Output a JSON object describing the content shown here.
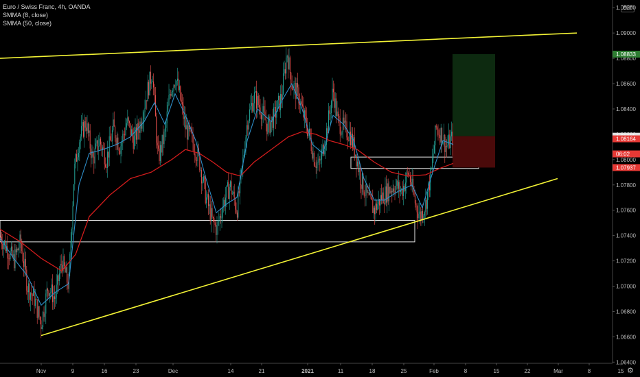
{
  "legend": {
    "symbol_line": "Euro / Swiss Franc, 4h, OANDA",
    "sma8": "SMMA (8, close)",
    "sma50": "SMMA (50, close)"
  },
  "axis": {
    "currency": "CHF"
  },
  "colors": {
    "trendline": "#f2f235",
    "sma_fast": "#2e8ec9",
    "sma_slow": "#d11c1c",
    "candle_up": "#26a69a",
    "candle_down": "#ef5350",
    "profit_zone": "#0d2a10",
    "loss_zone": "#4a0a0a",
    "tag_green": "#2e7d32",
    "tag_red": "#e53935",
    "tag_white": "#e0e0e0"
  },
  "chart_data": {
    "type": "candlestick",
    "y_range": [
      1.0638,
      1.0925
    ],
    "y_ticks": [
      "1.09200",
      "1.09000",
      "1.08800",
      "1.08600",
      "1.08400",
      "1.08200",
      "1.08000",
      "1.07800",
      "1.07600",
      "1.07400",
      "1.07200",
      "1.07000",
      "1.06800",
      "1.06600",
      "1.06400"
    ],
    "x_ticks": [
      {
        "label": "Nov",
        "t": 60
      },
      {
        "label": "9",
        "t": 106
      },
      {
        "label": "16",
        "t": 152
      },
      {
        "label": "23",
        "t": 198
      },
      {
        "label": "Dec",
        "t": 252
      },
      {
        "label": "14",
        "t": 336
      },
      {
        "label": "21",
        "t": 381
      },
      {
        "label": "2021",
        "t": 448
      },
      {
        "label": "11",
        "t": 496
      },
      {
        "label": "18",
        "t": 542
      },
      {
        "label": "25",
        "t": 588
      },
      {
        "label": "Feb",
        "t": 632
      },
      {
        "label": "8",
        "t": 678
      },
      {
        "label": "15",
        "t": 723
      },
      {
        "label": "22",
        "t": 768
      },
      {
        "label": "Mar",
        "t": 813
      },
      {
        "label": "8",
        "t": 858
      },
      {
        "label": "15",
        "t": 904
      }
    ],
    "price_path": [
      [
        0,
        1.074
      ],
      [
        10,
        1.073
      ],
      [
        20,
        1.072
      ],
      [
        30,
        1.0735
      ],
      [
        40,
        1.07
      ],
      [
        50,
        1.069
      ],
      [
        60,
        1.067
      ],
      [
        70,
        1.07
      ],
      [
        80,
        1.069
      ],
      [
        90,
        1.072
      ],
      [
        100,
        1.07
      ],
      [
        108,
        1.079
      ],
      [
        115,
        1.0815
      ],
      [
        125,
        1.083
      ],
      [
        135,
        1.08
      ],
      [
        145,
        1.0815
      ],
      [
        155,
        1.08
      ],
      [
        165,
        1.0825
      ],
      [
        175,
        1.081
      ],
      [
        185,
        1.083
      ],
      [
        195,
        1.0815
      ],
      [
        205,
        1.083
      ],
      [
        215,
        1.0855
      ],
      [
        222,
        1.087
      ],
      [
        230,
        1.08
      ],
      [
        240,
        1.082
      ],
      [
        248,
        1.0855
      ],
      [
        256,
        1.0865
      ],
      [
        262,
        1.085
      ],
      [
        270,
        1.0825
      ],
      [
        280,
        1.0815
      ],
      [
        290,
        1.08
      ],
      [
        300,
        1.077
      ],
      [
        310,
        1.075
      ],
      [
        316,
        1.0745
      ],
      [
        325,
        1.0765
      ],
      [
        335,
        1.078
      ],
      [
        345,
        1.076
      ],
      [
        352,
        1.079
      ],
      [
        360,
        1.083
      ],
      [
        370,
        1.085
      ],
      [
        380,
        1.084
      ],
      [
        390,
        1.0825
      ],
      [
        400,
        1.0835
      ],
      [
        410,
        1.085
      ],
      [
        418,
        1.0885
      ],
      [
        425,
        1.086
      ],
      [
        435,
        1.085
      ],
      [
        442,
        1.0835
      ],
      [
        450,
        1.082
      ],
      [
        458,
        1.08
      ],
      [
        465,
        1.0795
      ],
      [
        475,
        1.082
      ],
      [
        485,
        1.0855
      ],
      [
        492,
        1.083
      ],
      [
        500,
        1.0825
      ],
      [
        510,
        1.082
      ],
      [
        518,
        1.0805
      ],
      [
        525,
        1.0785
      ],
      [
        535,
        1.077
      ],
      [
        545,
        1.076
      ],
      [
        555,
        1.077
      ],
      [
        565,
        1.0775
      ],
      [
        575,
        1.078
      ],
      [
        585,
        1.0775
      ],
      [
        595,
        1.079
      ],
      [
        605,
        1.0765
      ],
      [
        612,
        1.0755
      ],
      [
        620,
        1.0765
      ],
      [
        628,
        1.079
      ],
      [
        635,
        1.0825
      ],
      [
        643,
        1.082
      ],
      [
        650,
        1.081
      ],
      [
        656,
        1.0815
      ],
      [
        660,
        1.0818
      ]
    ],
    "sma_fast_path": [
      [
        0,
        1.0738
      ],
      [
        20,
        1.0722
      ],
      [
        40,
        1.0708
      ],
      [
        60,
        1.0685
      ],
      [
        80,
        1.0695
      ],
      [
        100,
        1.0702
      ],
      [
        115,
        1.078
      ],
      [
        130,
        1.0805
      ],
      [
        150,
        1.0808
      ],
      [
        170,
        1.0812
      ],
      [
        190,
        1.0818
      ],
      [
        210,
        1.083
      ],
      [
        225,
        1.0845
      ],
      [
        240,
        1.0828
      ],
      [
        255,
        1.0852
      ],
      [
        270,
        1.0835
      ],
      [
        285,
        1.0815
      ],
      [
        300,
        1.0785
      ],
      [
        315,
        1.0758
      ],
      [
        330,
        1.0765
      ],
      [
        345,
        1.077
      ],
      [
        360,
        1.0815
      ],
      [
        375,
        1.084
      ],
      [
        395,
        1.083
      ],
      [
        412,
        1.0848
      ],
      [
        425,
        1.086
      ],
      [
        440,
        1.084
      ],
      [
        455,
        1.0812
      ],
      [
        470,
        1.0805
      ],
      [
        485,
        1.0835
      ],
      [
        500,
        1.0828
      ],
      [
        515,
        1.0815
      ],
      [
        530,
        1.0785
      ],
      [
        545,
        1.0768
      ],
      [
        560,
        1.0768
      ],
      [
        580,
        1.0775
      ],
      [
        600,
        1.078
      ],
      [
        615,
        1.0762
      ],
      [
        630,
        1.079
      ],
      [
        645,
        1.0815
      ],
      [
        660,
        1.0812
      ]
    ],
    "sma_slow_path": [
      [
        0,
        1.0745
      ],
      [
        30,
        1.0735
      ],
      [
        60,
        1.0722
      ],
      [
        90,
        1.0712
      ],
      [
        110,
        1.0725
      ],
      [
        130,
        1.0755
      ],
      [
        160,
        1.0772
      ],
      [
        190,
        1.0785
      ],
      [
        220,
        1.079
      ],
      [
        250,
        1.08
      ],
      [
        270,
        1.0808
      ],
      [
        290,
        1.0805
      ],
      [
        310,
        1.0798
      ],
      [
        330,
        1.079
      ],
      [
        350,
        1.0787
      ],
      [
        370,
        1.0798
      ],
      [
        395,
        1.0808
      ],
      [
        420,
        1.0818
      ],
      [
        440,
        1.0822
      ],
      [
        460,
        1.082
      ],
      [
        480,
        1.0815
      ],
      [
        500,
        1.0812
      ],
      [
        520,
        1.0808
      ],
      [
        545,
        1.0798
      ],
      [
        570,
        1.079
      ],
      [
        595,
        1.0787
      ],
      [
        620,
        1.0788
      ],
      [
        640,
        1.0793
      ],
      [
        660,
        1.0797
      ]
    ],
    "trendline_upper": [
      [
        0,
        1.088
      ],
      [
        840,
        1.09
      ]
    ],
    "trendline_lower": [
      [
        60,
        1.0661
      ],
      [
        812,
        1.0785
      ]
    ],
    "zones": [
      {
        "t0": 0,
        "t1": 604,
        "y0": 1.0752,
        "y1": 1.0735
      },
      {
        "t0": 511,
        "t1": 697,
        "y0": 1.0802,
        "y1": 1.0793
      }
    ],
    "position": {
      "t0": 659,
      "t1": 721,
      "target": 1.08833,
      "entry": 1.08185,
      "stop": 1.07937
    },
    "price_tags": [
      {
        "label": "1.08833",
        "price": 1.08833,
        "color": "green"
      },
      {
        "label": "1.08185",
        "price": 1.08185,
        "color": "white"
      },
      {
        "label": "1.08164",
        "price": 1.08164,
        "color": "red"
      },
      {
        "label": "06:02",
        "price": 1.08045,
        "color": "red"
      },
      {
        "label": "1.07937",
        "price": 1.07937,
        "color": "red"
      }
    ]
  }
}
